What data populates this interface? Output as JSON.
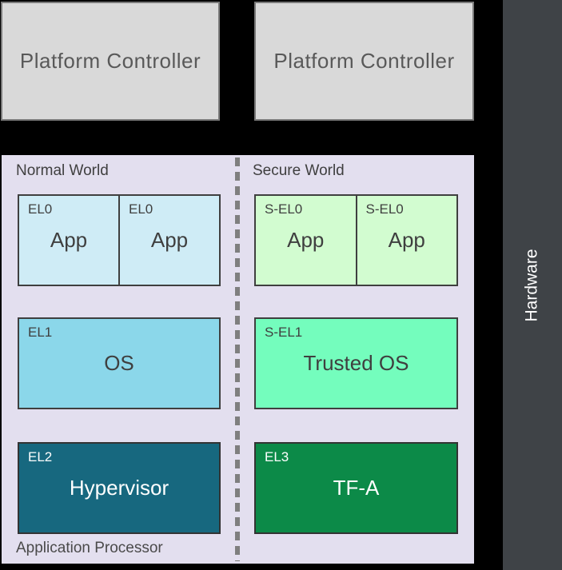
{
  "platform_controllers": [
    {
      "label": "Platform Controller"
    },
    {
      "label": "Platform Controller"
    }
  ],
  "hardware": {
    "label": "Hardware"
  },
  "application_processor": {
    "label": "Application Processor",
    "normal_world": {
      "label": "Normal World",
      "apps": [
        {
          "level": "EL0",
          "name": "App"
        },
        {
          "level": "EL0",
          "name": "App"
        }
      ],
      "os": {
        "level": "EL1",
        "name": "OS"
      },
      "hypervisor": {
        "level": "EL2",
        "name": "Hypervisor"
      }
    },
    "secure_world": {
      "label": "Secure World",
      "apps": [
        {
          "level": "S-EL0",
          "name": "App"
        },
        {
          "level": "S-EL0",
          "name": "App"
        }
      ],
      "trusted_os": {
        "level": "S-EL1",
        "name": "Trusted OS"
      },
      "secure_firmware": {
        "level": "EL3",
        "name": "TF-A"
      }
    }
  },
  "colors": {
    "background": "#000000",
    "platform_controller_fill": "#d9d9d9",
    "platform_controller_border": "#7a7a7a",
    "platform_controller_text": "#595959",
    "hardware_fill": "#3f4347",
    "hardware_text": "#ffffff",
    "panel_fill": "#e3dfef",
    "world_divider": "#7f7f7f",
    "el0_fill": "#cfecf6",
    "sel0_fill": "#d2fcd0",
    "el1_fill": "#8bd7ea",
    "sel1_fill": "#74fdbd",
    "el2_fill": "#17687f",
    "el3_fill": "#0c8a48",
    "box_border": "#3f3f3f",
    "label_text": "#3f3f3f"
  }
}
